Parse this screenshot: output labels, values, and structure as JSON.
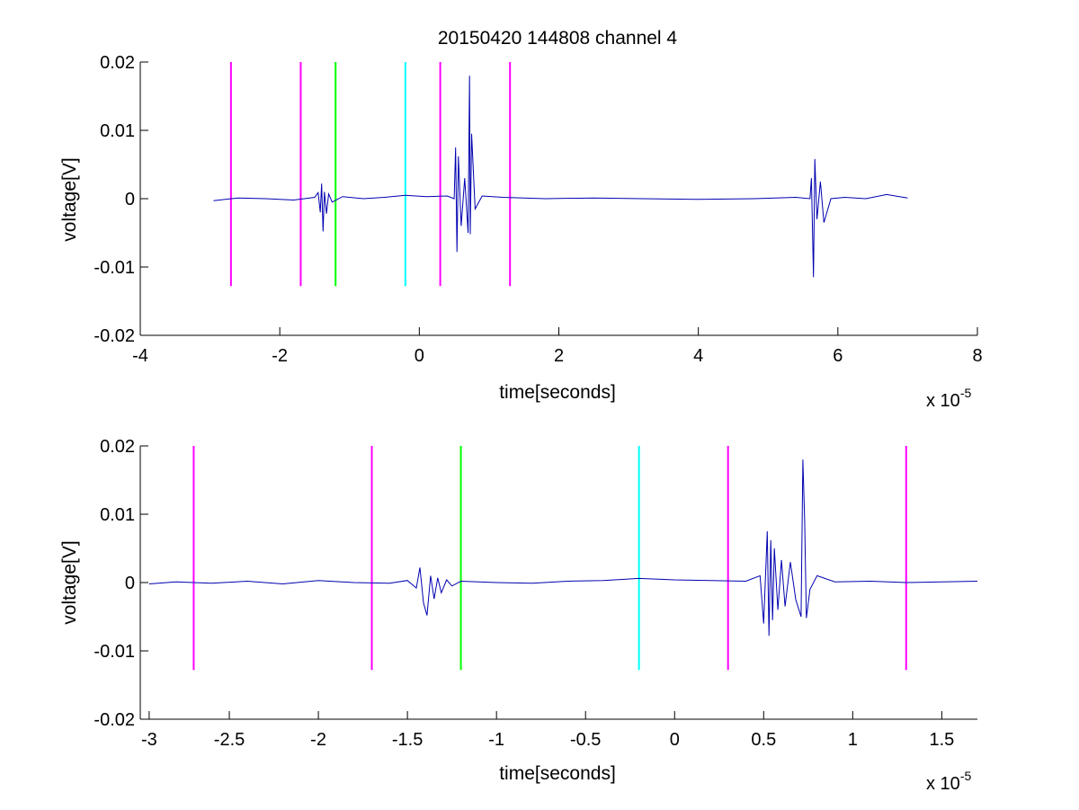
{
  "title": "20150420 144808 channel 4",
  "colors": {
    "trace": "#0000b0",
    "magenta": "#ff00ff",
    "green": "#00ff00",
    "cyan": "#00ffff",
    "axis": "#000000"
  },
  "chart_data": [
    {
      "type": "line",
      "xlabel": "time[seconds]",
      "ylabel": "voltage[V]",
      "xlim": [
        -4,
        8
      ],
      "ylim": [
        -0.02,
        0.02
      ],
      "x_scale_label": "x 10",
      "x_scale_exponent": "-5",
      "xticks": [
        -4,
        -2,
        0,
        2,
        4,
        6,
        8
      ],
      "xtick_labels": [
        "-4",
        "-2",
        "0",
        "2",
        "4",
        "6",
        "8"
      ],
      "yticks": [
        -0.02,
        -0.01,
        0,
        0.01,
        0.02
      ],
      "ytick_labels": [
        "-0.02",
        "-0.01",
        "0",
        "0.01",
        "0.02"
      ],
      "markers": [
        {
          "x": -2.7,
          "color": "magenta",
          "y_range": [
            -0.0128,
            0.02
          ]
        },
        {
          "x": -1.7,
          "color": "magenta",
          "y_range": [
            -0.0128,
            0.02
          ]
        },
        {
          "x": -1.2,
          "color": "green",
          "y_range": [
            -0.0128,
            0.02
          ]
        },
        {
          "x": -0.2,
          "color": "cyan",
          "y_range": [
            -0.0128,
            0.02
          ]
        },
        {
          "x": 0.3,
          "color": "magenta",
          "y_range": [
            -0.0128,
            0.02
          ]
        },
        {
          "x": 1.3,
          "color": "magenta",
          "y_range": [
            -0.0128,
            0.02
          ]
        }
      ],
      "series": [
        {
          "x": [
            -2.95,
            -2.6,
            -2.2,
            -1.8,
            -1.5,
            -1.45,
            -1.42,
            -1.4,
            -1.38,
            -1.36,
            -1.33,
            -1.3,
            -1.25,
            -1.1,
            -0.8,
            -0.5,
            -0.2,
            0.1,
            0.4,
            0.5,
            0.52,
            0.54,
            0.56,
            0.6,
            0.65,
            0.7,
            0.72,
            0.73,
            0.75,
            0.8,
            0.9,
            1.2,
            1.8,
            2.5,
            3.2,
            4.0,
            4.8,
            5.4,
            5.6,
            5.62,
            5.65,
            5.67,
            5.7,
            5.75,
            5.8,
            5.9,
            6.1,
            6.4,
            6.7,
            7.0
          ],
          "y": [
            -0.0003,
            0.0001,
            0.0,
            -0.0002,
            0.0002,
            0.0009,
            -0.002,
            0.0022,
            -0.0048,
            0.001,
            -0.0022,
            0.0007,
            -0.0005,
            0.0003,
            0.0,
            0.0002,
            0.0005,
            0.0003,
            0.0004,
            0.0,
            0.0075,
            -0.0078,
            0.0062,
            -0.004,
            0.003,
            -0.005,
            0.018,
            -0.0052,
            0.0095,
            -0.0015,
            0.0004,
            0.0002,
            0.0,
            0.0001,
            0.0,
            -0.0001,
            0.0,
            0.0002,
            0.0,
            0.003,
            -0.0115,
            0.0058,
            -0.003,
            0.0025,
            -0.0035,
            0.0,
            0.0002,
            0.0,
            0.0006,
            0.0001
          ]
        }
      ]
    },
    {
      "type": "line",
      "xlabel": "time[seconds]",
      "ylabel": "voltage[V]",
      "xlim": [
        -3.0,
        1.7
      ],
      "ylim": [
        -0.02,
        0.02
      ],
      "x_scale_label": "x 10",
      "x_scale_exponent": "-5",
      "xticks": [
        -2.95,
        -2.5,
        -2,
        -1.5,
        -1,
        -0.5,
        0,
        0.5,
        1,
        1.5
      ],
      "xtick_labels": [
        "-3",
        "-2.5",
        "-2",
        "-1.5",
        "-1",
        "-0.5",
        "0",
        "0.5",
        "1",
        "1.5"
      ],
      "yticks": [
        -0.02,
        -0.01,
        0,
        0.01,
        0.02
      ],
      "ytick_labels": [
        "-0.02",
        "-0.01",
        "0",
        "0.01",
        "0.02"
      ],
      "markers": [
        {
          "x": -2.7,
          "color": "magenta",
          "y_range": [
            -0.0128,
            0.02
          ]
        },
        {
          "x": -1.7,
          "color": "magenta",
          "y_range": [
            -0.0128,
            0.02
          ]
        },
        {
          "x": -1.2,
          "color": "green",
          "y_range": [
            -0.0128,
            0.02
          ]
        },
        {
          "x": -0.2,
          "color": "cyan",
          "y_range": [
            -0.0128,
            0.02
          ]
        },
        {
          "x": 0.3,
          "color": "magenta",
          "y_range": [
            -0.0128,
            0.02
          ]
        },
        {
          "x": 1.3,
          "color": "magenta",
          "y_range": [
            -0.0128,
            0.02
          ]
        }
      ],
      "series": [
        {
          "x": [
            -2.95,
            -2.8,
            -2.6,
            -2.4,
            -2.2,
            -2.0,
            -1.8,
            -1.6,
            -1.5,
            -1.45,
            -1.43,
            -1.41,
            -1.39,
            -1.37,
            -1.35,
            -1.33,
            -1.31,
            -1.28,
            -1.25,
            -1.2,
            -1.0,
            -0.8,
            -0.6,
            -0.4,
            -0.2,
            0.0,
            0.2,
            0.4,
            0.48,
            0.5,
            0.52,
            0.53,
            0.54,
            0.55,
            0.56,
            0.58,
            0.6,
            0.62,
            0.65,
            0.68,
            0.71,
            0.72,
            0.73,
            0.74,
            0.76,
            0.8,
            0.9,
            1.1,
            1.3,
            1.5,
            1.7
          ],
          "y": [
            -0.0002,
            0.0001,
            -0.0001,
            0.0002,
            -0.0002,
            0.0003,
            0.0,
            -0.0001,
            0.0003,
            -0.0008,
            0.0022,
            -0.003,
            -0.0048,
            0.001,
            -0.0024,
            0.0007,
            -0.0015,
            0.0004,
            -0.0005,
            0.0002,
            0.0,
            -0.0001,
            0.0002,
            0.0003,
            0.0006,
            0.0004,
            0.0003,
            0.0002,
            0.001,
            -0.006,
            0.0075,
            -0.0078,
            0.0062,
            -0.0055,
            0.005,
            -0.004,
            0.0033,
            -0.0035,
            0.003,
            -0.0025,
            -0.005,
            0.018,
            0.009,
            -0.0052,
            -0.001,
            0.001,
            0.0001,
            0.0002,
            0.0,
            0.0001,
            0.0002
          ]
        }
      ]
    }
  ]
}
